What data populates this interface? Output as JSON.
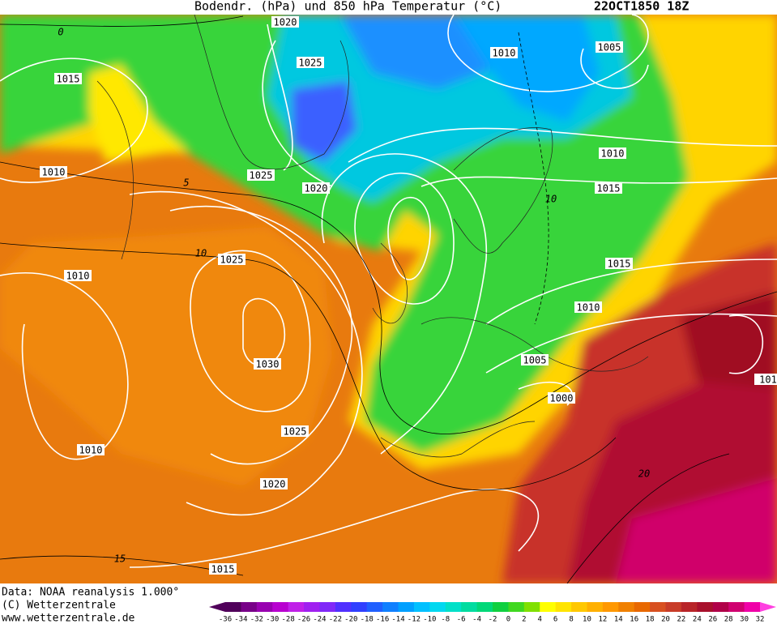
{
  "header": {
    "title": "Bodendr. (hPa)  und 850 hPa Temperatur (°C)",
    "timestamp": "22OCT1850 18Z"
  },
  "map": {
    "isobar_labels": [
      "1020",
      "1025",
      "1010",
      "1005",
      "1015",
      "1010",
      "1025",
      "1020",
      "1010",
      "1015",
      "1010",
      "1025",
      "1015",
      "1010",
      "1030",
      "1005",
      "1000",
      "1025",
      "1010",
      "1020",
      "1015",
      "101"
    ],
    "isotherm_labels": [
      "0",
      "5",
      "10",
      "10",
      "15",
      "20"
    ]
  },
  "footer": {
    "lines": [
      "Data: NOAA reanalysis 1.000°",
      "(C) Wetterzentrale",
      "www.wetterzentrale.de"
    ]
  },
  "colorbar": {
    "labels": [
      -36,
      -34,
      -32,
      -30,
      -28,
      -26,
      -24,
      -22,
      -20,
      -18,
      -16,
      -14,
      -12,
      -10,
      -8,
      -6,
      -4,
      -2,
      0,
      2,
      4,
      6,
      8,
      10,
      12,
      14,
      16,
      18,
      20,
      22,
      24,
      26,
      28,
      30,
      32
    ]
  }
}
